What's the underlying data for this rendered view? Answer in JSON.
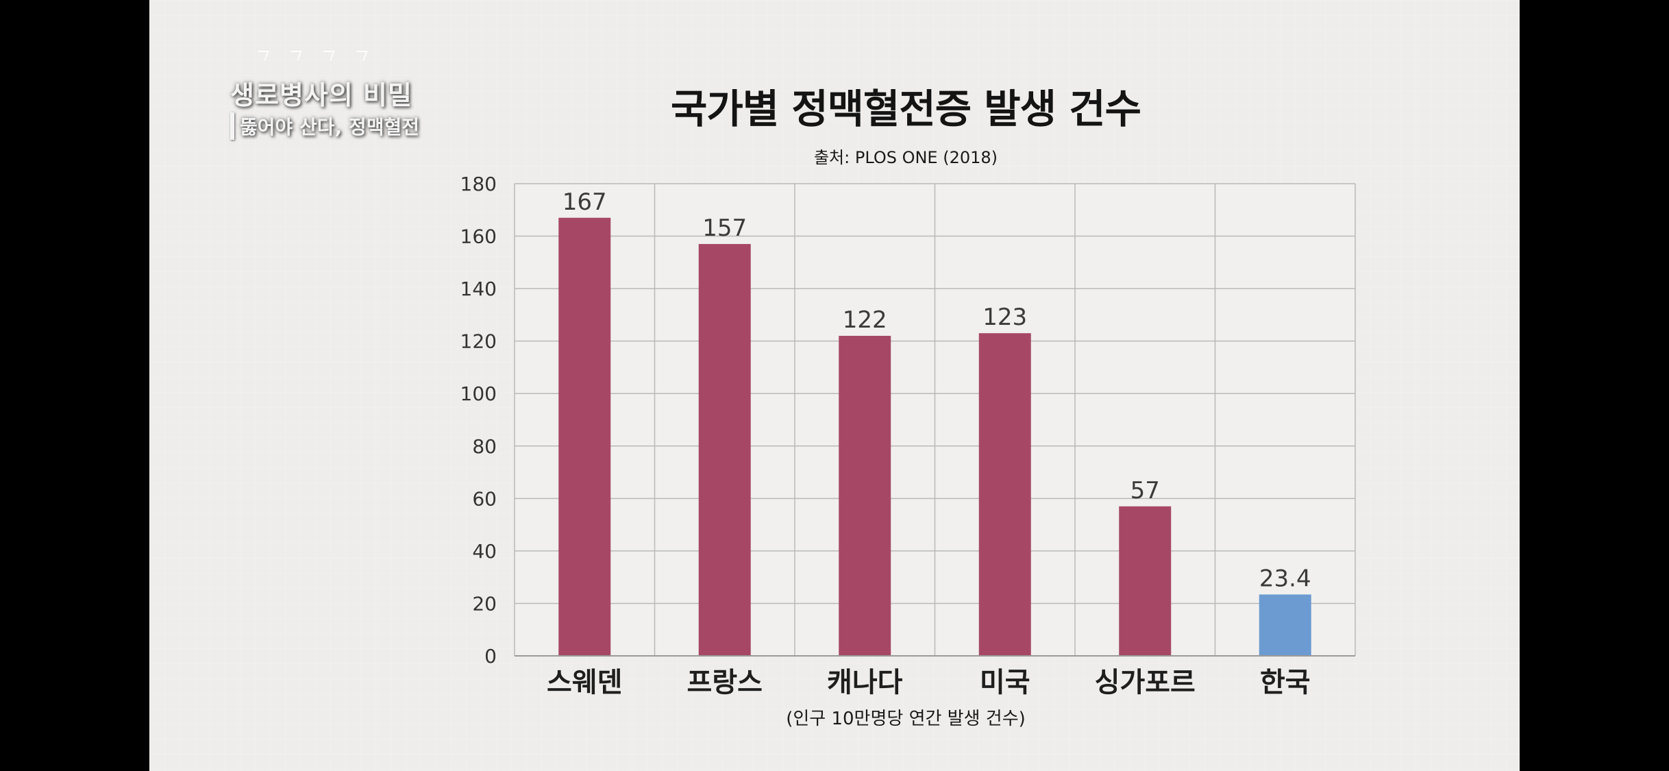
{
  "overlay": {
    "program_title": "생로병사의 비밀",
    "episode_title": "뚫어야 산다, 정맥혈전"
  },
  "chart_data": {
    "type": "bar",
    "title": "국가별 정맥혈전증 발생 건수",
    "subtitle": "출처: PLOS ONE (2018)",
    "xlabel": "(인구 10만명당 연간 발생 건수)",
    "ylabel": "",
    "ylim": [
      0,
      180
    ],
    "yticks": [
      0,
      20,
      40,
      60,
      80,
      100,
      120,
      140,
      160,
      180
    ],
    "grid": true,
    "categories": [
      "스웨덴",
      "프랑스",
      "캐나다",
      "미국",
      "싱가포르",
      "한국"
    ],
    "values": [
      167,
      157,
      122,
      123,
      57,
      23.4
    ],
    "data_labels": [
      "167",
      "157",
      "122",
      "123",
      "57",
      "23.4"
    ],
    "colors": {
      "default_bar": "#a64865",
      "highlight_bar": "#6c9bd2"
    },
    "highlight_category": "한국"
  }
}
